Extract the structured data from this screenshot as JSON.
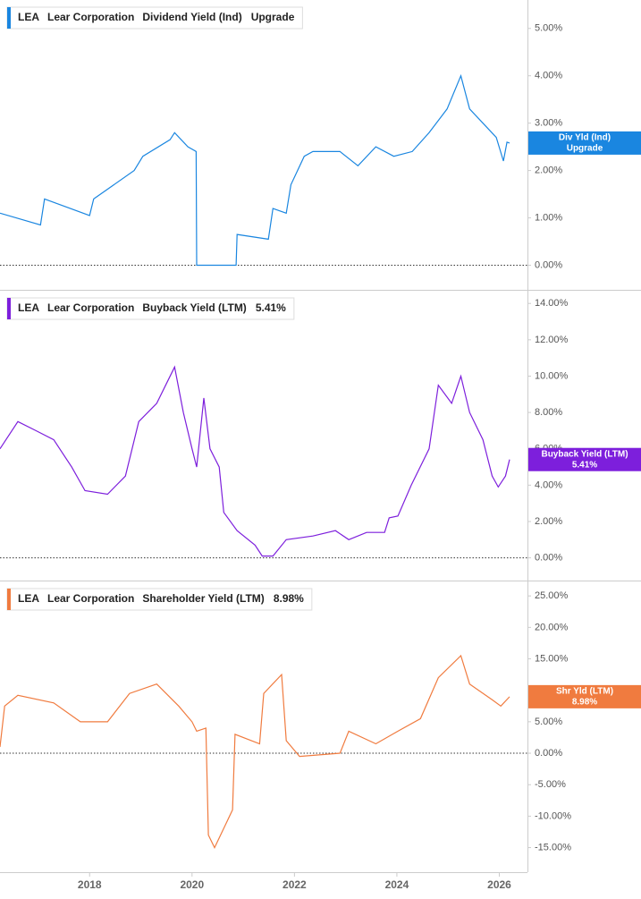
{
  "chart_data": [
    {
      "type": "line",
      "ticker": "LEA",
      "company": "Lear Corporation",
      "status": "Upgrade",
      "tag": "Div Yld (Ind)",
      "xlim": [
        2016.25,
        2026.55
      ],
      "ylim": [
        -0.5,
        5.6
      ],
      "zero_line": true,
      "yticks": [
        {
          "value": 0,
          "label": "0.00%"
        },
        {
          "value": 1,
          "label": "1.00%"
        },
        {
          "value": 2,
          "label": "2.00%"
        },
        {
          "value": 3,
          "label": "3.00%"
        },
        {
          "value": 4,
          "label": "4.00%"
        },
        {
          "value": 5,
          "label": "5.00%"
        }
      ],
      "x": [
        2016.25,
        2017.04,
        2017.12,
        2018.0,
        2018.08,
        2018.87,
        2019.04,
        2019.57,
        2019.66,
        2019.92,
        2020.08,
        2020.09,
        2020.86,
        2020.88,
        2021.49,
        2021.58,
        2021.84,
        2021.93,
        2022.19,
        2022.36,
        2022.89,
        2023.24,
        2023.59,
        2023.94,
        2024.3,
        2024.63,
        2024.98,
        2025.25,
        2025.42,
        2025.68,
        2025.94,
        2026.08,
        2026.15,
        2026.2
      ],
      "series": [
        {
          "name": "Dividend Yield (Ind)",
          "color": "#1a86e0",
          "values": [
            1.1,
            0.85,
            1.4,
            1.05,
            1.4,
            2.0,
            2.3,
            2.65,
            2.8,
            2.5,
            2.4,
            0,
            0,
            0.65,
            0.55,
            1.2,
            1.1,
            1.7,
            2.3,
            2.4,
            2.4,
            2.1,
            2.5,
            2.3,
            2.4,
            2.8,
            3.3,
            4.0,
            3.3,
            3.0,
            2.7,
            2.2,
            2.6,
            2.58
          ]
        }
      ]
    },
    {
      "type": "line",
      "ticker": "LEA",
      "company": "Lear Corporation",
      "last_value_label": "5.41%",
      "tag": "Buyback Yield (LTM)",
      "xlim": [
        2016.25,
        2026.55
      ],
      "ylim": [
        -1.2,
        14.7
      ],
      "zero_line": true,
      "yticks": [
        {
          "value": 0,
          "label": "0.00%"
        },
        {
          "value": 2,
          "label": "2.00%"
        },
        {
          "value": 4,
          "label": "4.00%"
        },
        {
          "value": 6,
          "label": "6.00%"
        },
        {
          "value": 8,
          "label": "8.00%"
        },
        {
          "value": 10,
          "label": "10.00%"
        },
        {
          "value": 12,
          "label": "12.00%"
        },
        {
          "value": 14,
          "label": "14.00%"
        }
      ],
      "x": [
        2016.25,
        2016.6,
        2016.95,
        2017.3,
        2017.65,
        2017.91,
        2018.35,
        2018.7,
        2018.96,
        2019.31,
        2019.66,
        2019.83,
        2020.0,
        2020.09,
        2020.23,
        2020.35,
        2020.53,
        2020.62,
        2020.88,
        2021.23,
        2021.37,
        2021.58,
        2021.84,
        2022.36,
        2022.8,
        2023.06,
        2023.41,
        2023.76,
        2023.85,
        2024.02,
        2024.28,
        2024.63,
        2024.81,
        2025.07,
        2025.25,
        2025.42,
        2025.68,
        2025.86,
        2025.98,
        2026.12,
        2026.2
      ],
      "series": [
        {
          "name": "Buyback Yield (LTM)",
          "color": "#7d1fdc",
          "values": [
            6.0,
            7.5,
            7.0,
            6.5,
            5.0,
            3.7,
            3.5,
            4.5,
            7.5,
            8.5,
            10.5,
            8.0,
            6.0,
            5.0,
            8.8,
            6.0,
            5.0,
            2.5,
            1.5,
            0.7,
            0.1,
            0.1,
            1.0,
            1.2,
            1.5,
            1.0,
            1.4,
            1.4,
            2.2,
            2.3,
            4.0,
            6.0,
            9.5,
            8.5,
            10.0,
            8.0,
            6.5,
            4.5,
            3.9,
            4.5,
            5.41
          ]
        }
      ]
    },
    {
      "type": "line",
      "ticker": "LEA",
      "company": "Lear Corporation",
      "last_value_label": "8.98%",
      "tag": "Shr Yld (LTM)",
      "xlim": [
        2016.25,
        2026.55
      ],
      "ylim": [
        -18.9,
        27.3
      ],
      "zero_line": true,
      "xticks": [
        2018,
        2020,
        2022,
        2024,
        2026
      ],
      "yticks": [
        {
          "value": -15,
          "label": "-15.00%"
        },
        {
          "value": -10,
          "label": "-10.00%"
        },
        {
          "value": -5,
          "label": "-5.00%"
        },
        {
          "value": 0,
          "label": "0.00%"
        },
        {
          "value": 5,
          "label": "5.00%"
        },
        {
          "value": 10,
          "label": "10.00%"
        },
        {
          "value": 15,
          "label": "15.00%"
        },
        {
          "value": 20,
          "label": "20.00%"
        },
        {
          "value": 25,
          "label": "25.00%"
        }
      ],
      "x": [
        2016.25,
        2016.34,
        2016.6,
        2017.3,
        2017.82,
        2018.35,
        2018.78,
        2019.31,
        2019.74,
        2020.0,
        2020.09,
        2020.27,
        2020.32,
        2020.44,
        2020.79,
        2020.84,
        2021.32,
        2021.4,
        2021.75,
        2021.84,
        2022.1,
        2022.89,
        2023.06,
        2023.59,
        2024.02,
        2024.46,
        2024.81,
        2025.25,
        2025.42,
        2025.86,
        2026.03,
        2026.2
      ],
      "series": [
        {
          "name": "Shareholder Yield (LTM)",
          "color": "#f07b3f",
          "values": [
            1.0,
            7.5,
            9.2,
            8.0,
            5.0,
            5.0,
            9.5,
            11.0,
            7.5,
            5.0,
            3.5,
            4.0,
            -13.0,
            -15.0,
            -9.0,
            3.0,
            1.5,
            9.5,
            12.5,
            2.0,
            -0.5,
            0.0,
            3.5,
            1.5,
            3.5,
            5.5,
            12.0,
            15.5,
            11.0,
            8.5,
            7.5,
            8.98
          ]
        }
      ]
    }
  ]
}
